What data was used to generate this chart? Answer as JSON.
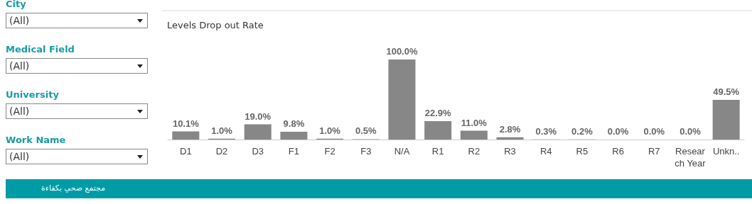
{
  "chart_data": {
    "type": "bar",
    "title": "Levels Drop out Rate",
    "categories": [
      "D1",
      "D2",
      "D3",
      "F1",
      "F2",
      "F3",
      "N/A",
      "R1",
      "R2",
      "R3",
      "R4",
      "R5",
      "R6",
      "R7",
      "Research Year",
      "Unkn.."
    ],
    "values": [
      10.1,
      1.0,
      19.0,
      9.8,
      1.0,
      0.5,
      100.0,
      22.9,
      11.0,
      2.8,
      0.3,
      0.2,
      0.0,
      0.0,
      0.0,
      49.5
    ],
    "value_labels": [
      "10.1%",
      "1.0%",
      "19.0%",
      "9.8%",
      "1.0%",
      "0.5%",
      "100.0%",
      "22.9%",
      "11.0%",
      "2.8%",
      "0.3%",
      "0.2%",
      "0.0%",
      "0.0%",
      "0.0%",
      "49.5%"
    ],
    "color": "#878787",
    "annotations": [
      "City",
      "(All)",
      "Medical Field",
      "(All)",
      "University",
      "(All)",
      "Work Name",
      "(All)",
      "مجتمع صحي بكفاءة"
    ]
  }
}
